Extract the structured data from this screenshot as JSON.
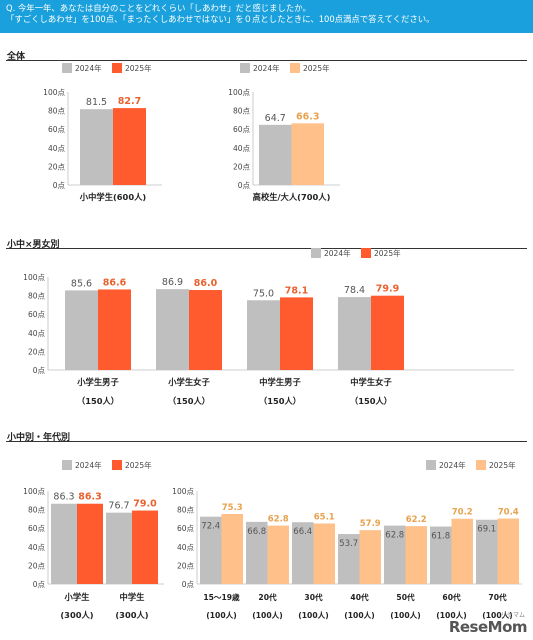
{
  "header": {
    "line1": "Q. 今年一年、あなたは自分のことをどれくらい「しあわせ」だと感じましたか。",
    "line2": "「すごくしあわせ」を100点、「まったくしあわせではない」を０点としたときに、100点満点で答えてください。"
  },
  "sections": {
    "overall": "全体",
    "gender": "小中×男女別",
    "age": "小中別・年代別"
  },
  "colors": {
    "y2024": "#bfbfbf",
    "y2025_kids": "#ff5b2e",
    "y2025_adult": "#ffc08a",
    "label_2025_kids": "#e8622e",
    "label_2025_adult": "#e8a24e",
    "label_2024": "#555555"
  },
  "watermark": {
    "text": "ReseMom",
    "sub": "リセマム"
  },
  "chart_data": [
    {
      "type": "bar",
      "categories": [
        [
          "小中学生(600人)"
        ]
      ],
      "series": [
        {
          "name": "2024年",
          "values": [
            81.5
          ]
        },
        {
          "name": "2025年",
          "values": [
            82.7
          ]
        }
      ],
      "ylim": [
        0,
        100
      ],
      "yticks": [
        "0点",
        "20点",
        "40点",
        "60点",
        "80点",
        "100点"
      ],
      "legend": "top"
    },
    {
      "type": "bar",
      "categories": [
        [
          "高校生/大人(700人)"
        ]
      ],
      "series": [
        {
          "name": "2024年",
          "values": [
            64.7
          ]
        },
        {
          "name": "2025年",
          "values": [
            66.3
          ]
        }
      ],
      "ylim": [
        0,
        100
      ],
      "yticks": [
        "0点",
        "20点",
        "40点",
        "60点",
        "80点",
        "100点"
      ],
      "legend": "top"
    },
    {
      "type": "bar",
      "categories": [
        [
          "小学生男子",
          "（150人）"
        ],
        [
          "小学生女子",
          "（150人）"
        ],
        [
          "中学生男子",
          "（150人）"
        ],
        [
          "中学生女子",
          "（150人）"
        ]
      ],
      "series": [
        {
          "name": "2024年",
          "values": [
            85.6,
            86.9,
            75.0,
            78.4
          ]
        },
        {
          "name": "2025年",
          "values": [
            86.6,
            86.0,
            78.1,
            79.9
          ]
        }
      ],
      "ylim": [
        0,
        100
      ],
      "yticks": [
        "0点",
        "20点",
        "40点",
        "60点",
        "80点",
        "100点"
      ],
      "legend": "top-right"
    },
    {
      "type": "bar",
      "categories": [
        [
          "小学生",
          "(300人)"
        ],
        [
          "中学生",
          "(300人)"
        ]
      ],
      "series": [
        {
          "name": "2024年",
          "values": [
            86.3,
            76.7
          ]
        },
        {
          "name": "2025年",
          "values": [
            86.3,
            79.0
          ]
        }
      ],
      "ylim": [
        0,
        100
      ],
      "yticks": [
        "0点",
        "20点",
        "40点",
        "60点",
        "80点",
        "100点"
      ],
      "legend": "top"
    },
    {
      "type": "bar",
      "categories": [
        [
          "15～19歳",
          "(100人)"
        ],
        [
          "20代",
          "(100人)"
        ],
        [
          "30代",
          "(100人)"
        ],
        [
          "40代",
          "(100人)"
        ],
        [
          "50代",
          "(100人)"
        ],
        [
          "60代",
          "(100人)"
        ],
        [
          "70代",
          "(100人)"
        ]
      ],
      "series": [
        {
          "name": "2024年",
          "values": [
            72.4,
            66.8,
            66.4,
            53.7,
            62.8,
            61.8,
            69.1
          ]
        },
        {
          "name": "2025年",
          "values": [
            75.3,
            62.8,
            65.1,
            57.9,
            62.2,
            70.2,
            70.4
          ]
        }
      ],
      "ylim": [
        0,
        100
      ],
      "yticks": [
        "0点",
        "20点",
        "40点",
        "60点",
        "80点",
        "100点"
      ],
      "legend": "top-right"
    }
  ]
}
